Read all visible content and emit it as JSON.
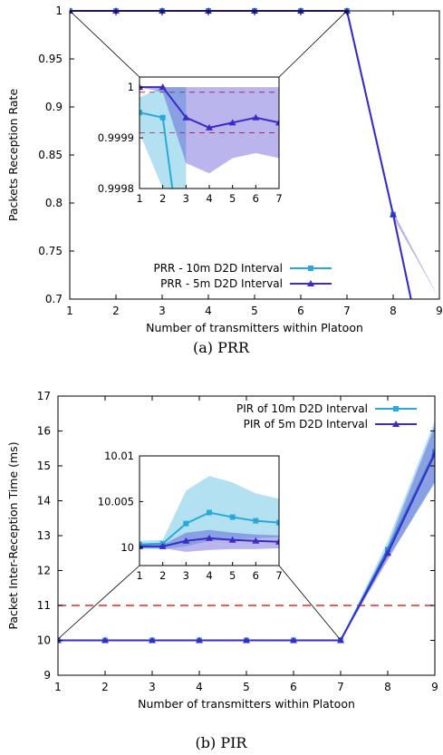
{
  "figures": [
    {
      "caption": "(a) PRR",
      "ylabel": "Packets Reception Rate",
      "xlabel": "Number of transmitters within Platoon",
      "legend": [
        "PRR - 10m D2D Interval",
        "PRR - 5m D2D Interval"
      ],
      "yticks": [
        "0.7",
        "0.75",
        "0.8",
        "0.85",
        "0.9",
        "0.95",
        "1"
      ],
      "xticks": [
        "1",
        "2",
        "3",
        "4",
        "5",
        "6",
        "7",
        "8",
        "9"
      ],
      "inset_yticks": [
        "0.9998",
        "0.9999",
        "1"
      ],
      "inset_xticks": [
        "1",
        "2",
        "3",
        "4",
        "5",
        "6",
        "7"
      ]
    },
    {
      "caption": "(b) PIR",
      "ylabel": "Packet Inter-Reception Time (ms)",
      "xlabel": "Number of transmitters within Platoon",
      "legend": [
        "PIR of 10m D2D Interval",
        "PIR of 5m D2D Interval"
      ],
      "yticks": [
        "9",
        "10",
        "11",
        "12",
        "13",
        "14",
        "15",
        "16",
        "17"
      ],
      "xticks": [
        "1",
        "2",
        "3",
        "4",
        "5",
        "6",
        "7",
        "8",
        "9"
      ],
      "inset_yticks": [
        "10",
        "10.005",
        "10.01"
      ],
      "inset_xticks": [
        "1",
        "2",
        "3",
        "4",
        "5",
        "6",
        "7"
      ]
    }
  ],
  "chart_data": [
    {
      "type": "line",
      "caption": "(a) PRR",
      "xlabel": "Number of transmitters within Platoon",
      "ylabel": "Packets Reception Rate",
      "xlim": [
        1,
        9
      ],
      "ylim": [
        0.7,
        1.0
      ],
      "threshold_lines": [],
      "series": [
        {
          "name": "PRR - 10m D2D Interval",
          "color": "#29a9d8",
          "marker": "square",
          "x": [
            1,
            2,
            3,
            4,
            5,
            6,
            7,
            8,
            9
          ],
          "y": [
            1,
            1,
            1,
            1,
            1,
            1,
            1,
            0.788,
            0.56
          ]
        },
        {
          "name": "PRR - 5m D2D Interval",
          "color": "#3a2bc8",
          "marker": "triangle",
          "x": [
            1,
            2,
            3,
            4,
            5,
            6,
            7,
            8,
            9
          ],
          "y": [
            1,
            1,
            1,
            1,
            1,
            1,
            1,
            0.788,
            0.56
          ],
          "band_half_width": [
            0,
            0,
            0,
            0,
            0,
            0,
            0,
            0.003,
            0.006
          ]
        }
      ],
      "inset": {
        "xlim": [
          1,
          7
        ],
        "ylim": [
          0.9998,
          1.00002
        ],
        "reference_lines": [
          0.99999,
          0.99991
        ],
        "series": [
          {
            "name": "PRR - 10m D2D Interval",
            "x": [
              1,
              2,
              3
            ],
            "y": [
              0.99995,
              0.99994,
              0.9996
            ],
            "band_low": [
              0.99991,
              0.99979,
              0.9996
            ],
            "band_high": [
              0.99998,
              1.0,
              1.0
            ]
          },
          {
            "name": "PRR - 5m D2D Interval",
            "x": [
              1,
              2,
              3,
              4,
              5,
              6,
              7
            ],
            "y": [
              1.0,
              1.0,
              0.99994,
              0.99992,
              0.99993,
              0.99994,
              0.99993
            ],
            "band_low": [
              1.0,
              0.99999,
              0.99985,
              0.99983,
              0.99986,
              0.99987,
              0.99986
            ],
            "band_high": [
              1.0,
              1.0,
              1.0,
              1.0,
              1.0,
              1.0,
              1.0
            ]
          }
        ]
      }
    },
    {
      "type": "line",
      "caption": "(b) PIR",
      "xlabel": "Number of transmitters within Platoon",
      "ylabel": "Packet Inter-Reception Time (ms)",
      "xlim": [
        1,
        9
      ],
      "ylim": [
        9,
        17
      ],
      "threshold_lines": [
        11
      ],
      "series": [
        {
          "name": "PIR of 10m D2D Interval",
          "color": "#29a9d8",
          "marker": "square",
          "x": [
            1,
            2,
            3,
            4,
            5,
            6,
            7,
            8,
            9
          ],
          "y": [
            10,
            10,
            10,
            10,
            10,
            10,
            10,
            12.6,
            15.4
          ],
          "band_half_width": [
            0,
            0,
            0,
            0,
            0,
            0,
            0,
            0.25,
            0.9
          ]
        },
        {
          "name": "PIR of 5m D2D Interval",
          "color": "#3a2bc8",
          "marker": "triangle",
          "x": [
            1,
            2,
            3,
            4,
            5,
            6,
            7,
            8,
            9
          ],
          "y": [
            10,
            10,
            10,
            10,
            10,
            10,
            10,
            12.5,
            15.35
          ],
          "band_half_width": [
            0,
            0,
            0,
            0,
            0,
            0,
            0,
            0.2,
            0.8
          ]
        }
      ],
      "inset": {
        "xlim": [
          1,
          7
        ],
        "ylim": [
          9.998,
          10.01
        ],
        "reference_lines": [],
        "series": [
          {
            "name": "PIR of 10m D2D Interval",
            "x": [
              1,
              2,
              3,
              4,
              5,
              6,
              7
            ],
            "y": [
              10.0003,
              10.0004,
              10.0026,
              10.0038,
              10.0033,
              10.0029,
              10.0027
            ],
            "band_low": [
              9.9998,
              9.9998,
              10.0001,
              10.0007,
              10.0008,
              10.001,
              10.0011
            ],
            "band_high": [
              10.0007,
              10.0008,
              10.0062,
              10.0078,
              10.0071,
              10.0059,
              10.0053
            ]
          },
          {
            "name": "PIR of 5m D2D Interval",
            "x": [
              1,
              2,
              3,
              4,
              5,
              6,
              7
            ],
            "y": [
              10.0001,
              10.0001,
              10.0007,
              10.001,
              10.0008,
              10.0007,
              10.0006
            ],
            "band_low": [
              9.9999,
              9.9999,
              9.9995,
              9.9997,
              9.9998,
              9.9998,
              9.9999
            ],
            "band_high": [
              10.0003,
              10.0003,
              10.0016,
              10.0019,
              10.0016,
              10.0014,
              10.0013
            ]
          }
        ]
      }
    }
  ]
}
